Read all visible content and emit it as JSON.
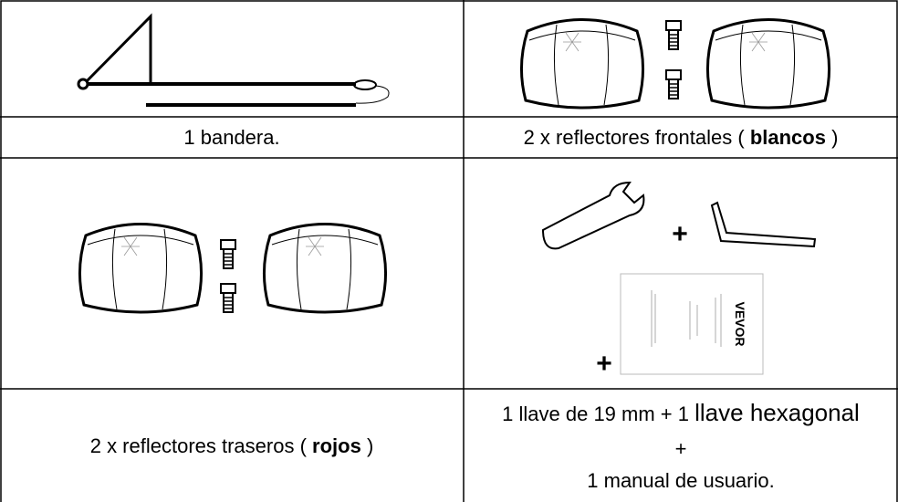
{
  "images": {
    "tools_plus": "+",
    "manual_plus": "+",
    "manual_brand": "VEVOR"
  },
  "table": {
    "rows": [
      [
        "1 bandera.",
        {
          "before": "2 x reflectores frontales (",
          "bold": "blancos",
          "after": ")"
        }
      ],
      [
        {
          "before": "2 x reflectores traseros (",
          "bold": "rojos",
          "after": ")"
        },
        {
          "line1": "1 llave de 19 mm + 1",
          "line1_large": "llave hexagonal",
          "line2": "+",
          "line3": "1 manual de usuario."
        }
      ]
    ]
  }
}
